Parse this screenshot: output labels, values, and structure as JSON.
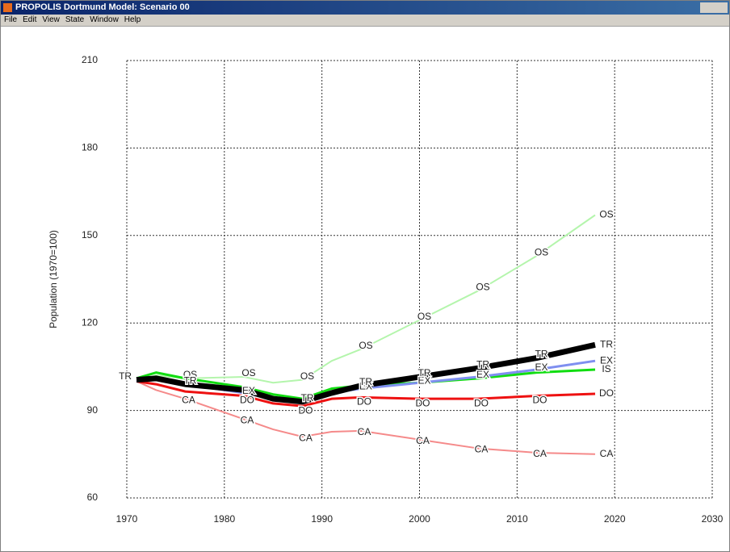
{
  "window": {
    "title": "PROPOLIS Dortmund Model: Scenario 00",
    "menu": [
      "File",
      "Edit",
      "View",
      "State",
      "Window",
      "Help"
    ]
  },
  "chart_data": {
    "type": "line",
    "y_label": "Population (1970=100)",
    "x": [
      1971,
      1973,
      1976,
      1982,
      1985,
      1988,
      1991,
      1994,
      2000,
      2006,
      2012,
      2018
    ],
    "series": [
      {
        "name": "OS",
        "color": "#b4f5ac",
        "values": [
          100,
          102,
          101,
          101.5,
          99.5,
          100.5,
          107,
          111,
          121,
          131,
          143,
          157
        ]
      },
      {
        "name": "CA",
        "color": "#f58a8a",
        "values": [
          100,
          97,
          94,
          87,
          83.5,
          81,
          82.7,
          83,
          80,
          77,
          75.5,
          75
        ]
      },
      {
        "name": "DO",
        "color": "#ee1111",
        "values": [
          100,
          99,
          96.5,
          95,
          92.4,
          91.5,
          94,
          94.5,
          94,
          94,
          95,
          95.7
        ]
      },
      {
        "name": "IS",
        "color": "#11dd11",
        "values": [
          101,
          103,
          101,
          98,
          95.5,
          94,
          97.5,
          98.5,
          99.5,
          101,
          103,
          104
        ]
      },
      {
        "name": "EX",
        "color": "#7f8ff0",
        "values": [
          100,
          100.5,
          99,
          96,
          94,
          93,
          96,
          97.5,
          99.5,
          101.5,
          104,
          107
        ]
      },
      {
        "name": "TR",
        "color": "#000000",
        "values": [
          100.5,
          101,
          99,
          97,
          94,
          93,
          96,
          98.5,
          101.5,
          104.5,
          108,
          112.5
        ]
      }
    ],
    "xlim": [
      1970,
      2030
    ],
    "xticks": [
      1970,
      1980,
      1990,
      2000,
      2010,
      2020,
      2030
    ],
    "ylim": [
      60,
      210
    ],
    "yticks": [
      60,
      90,
      120,
      150,
      180,
      210
    ],
    "grid": true
  }
}
